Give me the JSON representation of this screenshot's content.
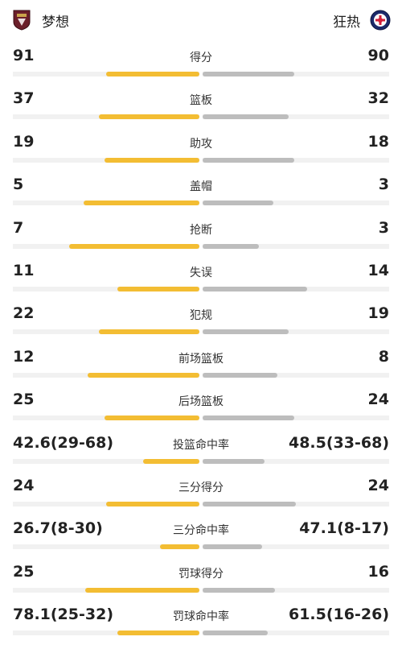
{
  "home": {
    "name": "梦想",
    "logo": "shield-logo",
    "color": "#f3bd33"
  },
  "away": {
    "name": "狂热",
    "logo": "round-logo",
    "color": "#bdbdbd"
  },
  "stats": [
    {
      "label": "得分",
      "home": "91",
      "away": "90",
      "home_fill": 0.5,
      "away_fill": 0.49
    },
    {
      "label": "篮板",
      "home": "37",
      "away": "32",
      "home_fill": 0.54,
      "away_fill": 0.46
    },
    {
      "label": "助攻",
      "home": "19",
      "away": "18",
      "home_fill": 0.51,
      "away_fill": 0.49
    },
    {
      "label": "盖帽",
      "home": "5",
      "away": "3",
      "home_fill": 0.62,
      "away_fill": 0.38
    },
    {
      "label": "抢断",
      "home": "7",
      "away": "3",
      "home_fill": 0.7,
      "away_fill": 0.3
    },
    {
      "label": "失误",
      "home": "11",
      "away": "14",
      "home_fill": 0.44,
      "away_fill": 0.56
    },
    {
      "label": "犯规",
      "home": "22",
      "away": "19",
      "home_fill": 0.54,
      "away_fill": 0.46
    },
    {
      "label": "前场篮板",
      "home": "12",
      "away": "8",
      "home_fill": 0.6,
      "away_fill": 0.4
    },
    {
      "label": "后场篮板",
      "home": "25",
      "away": "24",
      "home_fill": 0.51,
      "away_fill": 0.49
    },
    {
      "label": "投篮命中率",
      "home": "42.6(29-68)",
      "away": "48.5(33-68)",
      "home_fill": 0.3,
      "away_fill": 0.33
    },
    {
      "label": "三分得分",
      "home": "24",
      "away": "24",
      "home_fill": 0.5,
      "away_fill": 0.5
    },
    {
      "label": "三分命中率",
      "home": "26.7(8-30)",
      "away": "47.1(8-17)",
      "home_fill": 0.21,
      "away_fill": 0.32
    },
    {
      "label": "罚球得分",
      "home": "25",
      "away": "16",
      "home_fill": 0.61,
      "away_fill": 0.39
    },
    {
      "label": "罚球命中率",
      "home": "78.1(25-32)",
      "away": "61.5(16-26)",
      "home_fill": 0.44,
      "away_fill": 0.35
    }
  ]
}
